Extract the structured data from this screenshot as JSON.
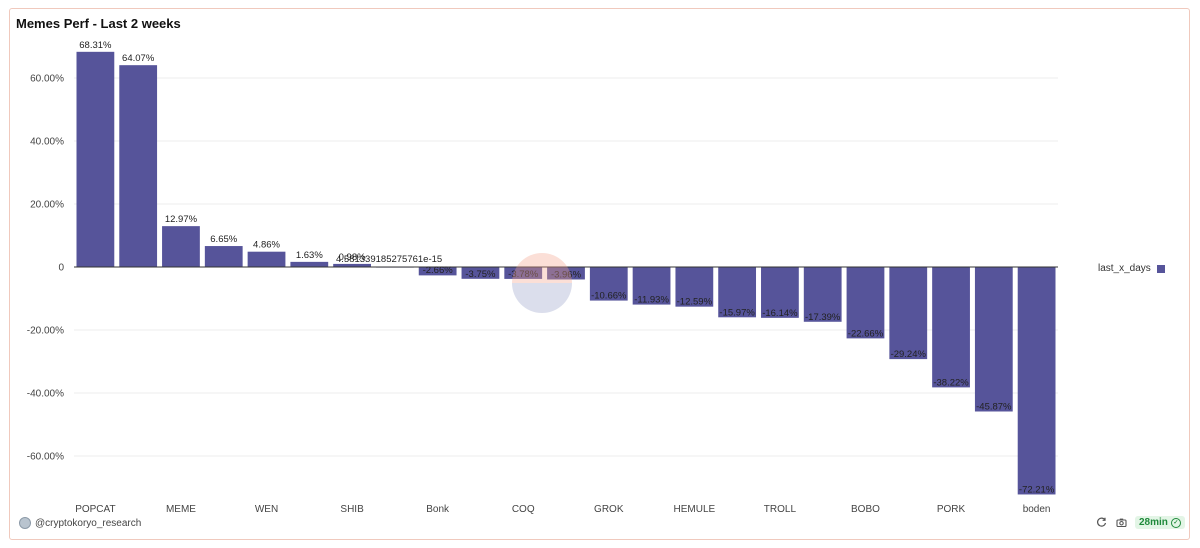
{
  "panel": {
    "title": "Memes Perf - Last 2 weeks",
    "author": "@cryptokoryo_research",
    "refresh_age": "28min",
    "icons": {
      "refresh": "refresh-icon",
      "camera": "camera-icon",
      "check": "check-circle-icon"
    }
  },
  "chart_data": {
    "type": "bar",
    "title": "Memes Perf - Last 2 weeks",
    "xlabel": "",
    "ylabel": "",
    "ylim": [
      -72.21,
      68.31
    ],
    "y_ticks": [
      "60.00%",
      "40.00%",
      "20.00%",
      "0",
      "-20.00%",
      "-40.00%",
      "-60.00%"
    ],
    "y_tick_values": [
      60,
      40,
      20,
      0,
      -20,
      -40,
      -60
    ],
    "grid": true,
    "legend_placement": "right",
    "bar_color": "#56549a",
    "series": [
      {
        "name": "last_x_days",
        "values": [
          68.31,
          64.07,
          12.97,
          6.65,
          4.86,
          1.63,
          0.98,
          4.581339185275761e-15,
          -2.66,
          -3.75,
          -3.78,
          -3.96,
          -10.66,
          -11.93,
          -12.59,
          -15.97,
          -16.14,
          -17.39,
          -22.66,
          -29.24,
          -38.22,
          -45.87,
          -72.21
        ]
      }
    ],
    "data_labels": [
      "68.31%",
      "64.07%",
      "12.97%",
      "6.65%",
      "4.86%",
      "1.63%",
      "0.98%",
      "4.581339185275761e-15",
      "-2.66%",
      "-3.75%",
      "-3.78%",
      "-3.96%",
      "-10.66%",
      "-11.93%",
      "-12.59%",
      "-15.97%",
      "-16.14%",
      "-17.39%",
      "-22.66%",
      "-29.24%",
      "-38.22%",
      "-45.87%",
      "-72.21%"
    ],
    "x_tick_labels": [
      "POPCAT",
      "MEME",
      "WEN",
      "SHIB",
      "Bonk",
      "COQ",
      "GROK",
      "HEMULE",
      "TROLL",
      "BOBO",
      "PORK",
      "boden"
    ]
  }
}
